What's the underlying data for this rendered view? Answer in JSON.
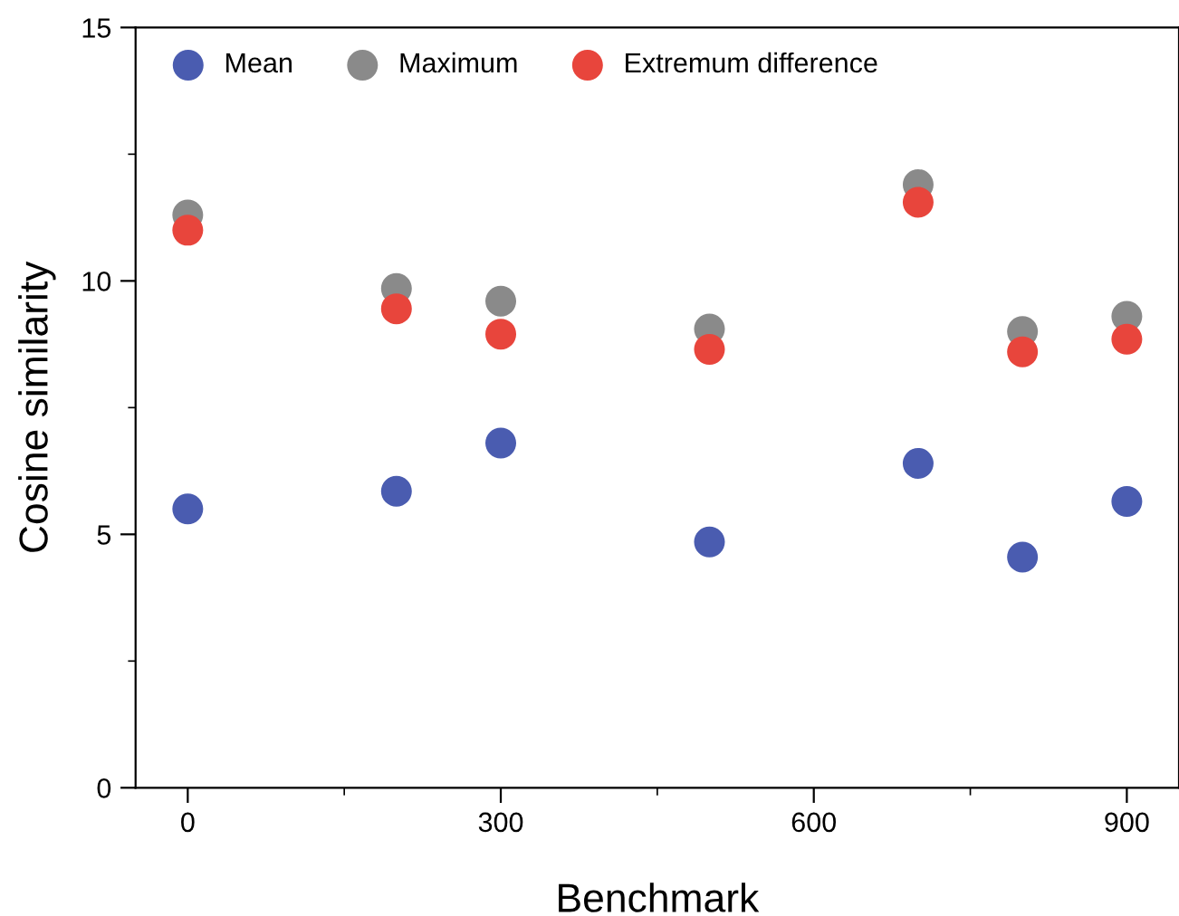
{
  "chart_data": {
    "type": "scatter",
    "xlabel": "Benchmark",
    "ylabel": "Cosine similarity",
    "x": [
      0,
      200,
      300,
      500,
      700,
      800,
      900
    ],
    "series": [
      {
        "name": "Mean",
        "color": "#4a5cb0",
        "values": [
          5.5,
          5.85,
          6.8,
          4.85,
          6.4,
          4.55,
          5.65
        ]
      },
      {
        "name": "Maximum",
        "color": "#8a8a8a",
        "values": [
          11.3,
          9.85,
          9.6,
          9.05,
          11.9,
          9.0,
          9.3
        ]
      },
      {
        "name": "Extremum difference",
        "color": "#e8453c",
        "values": [
          11.0,
          9.45,
          8.95,
          8.65,
          11.55,
          8.6,
          8.85
        ]
      }
    ],
    "xlim": [
      -50,
      950
    ],
    "xticks": [
      0,
      300,
      600,
      900
    ],
    "ylim": [
      0,
      15
    ],
    "yticks": [
      0,
      5,
      10,
      15
    ],
    "marker": "circle",
    "legend": "top left",
    "grid": false
  }
}
